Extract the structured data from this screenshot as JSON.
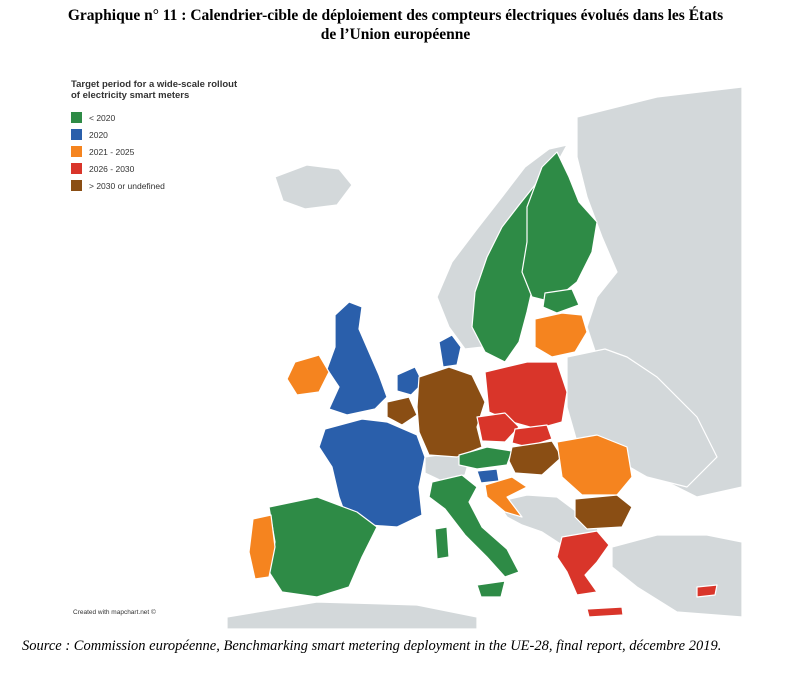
{
  "title_line1": "Graphique n° 11 : Calendrier-cible de déploiement des compteurs électriques évolués dans les États",
  "title_line2": "de l’Union européenne",
  "legend": {
    "title": "Target period for a wide-scale rollout of electricity smart meters",
    "items": [
      {
        "label": "< 2020",
        "color": "#2e8b46"
      },
      {
        "label": "2020",
        "color": "#2a5fab"
      },
      {
        "label": "2021 - 2025",
        "color": "#f5841f"
      },
      {
        "label": "2026 - 2030",
        "color": "#d9352a"
      },
      {
        "label": "> 2030 or undefined",
        "color": "#8a4e14"
      }
    ]
  },
  "credit": "Created with mapchart.net ©",
  "source": "Source : Commission européenne, Benchmarking smart metering deployment in the UE-28, final report, décembre 2019.",
  "colors": {
    "land_other": "#d3d8da",
    "sea": "#ffffff",
    "border": "#ffffff"
  },
  "countries": {
    "green": [
      "Sweden",
      "Finland",
      "Estonia",
      "Italy",
      "Spain",
      "Austria",
      "Luxembourg",
      "Malta"
    ],
    "blue": [
      "United Kingdom",
      "France",
      "Denmark",
      "Netherlands",
      "Slovenia"
    ],
    "orange": [
      "Ireland",
      "Latvia",
      "Lithuania",
      "Portugal",
      "Romania",
      "Croatia"
    ],
    "red": [
      "Poland",
      "Czechia",
      "Slovakia",
      "Greece",
      "Cyprus"
    ],
    "brown": [
      "Germany",
      "Belgium",
      "Hungary",
      "Bulgaria"
    ]
  }
}
